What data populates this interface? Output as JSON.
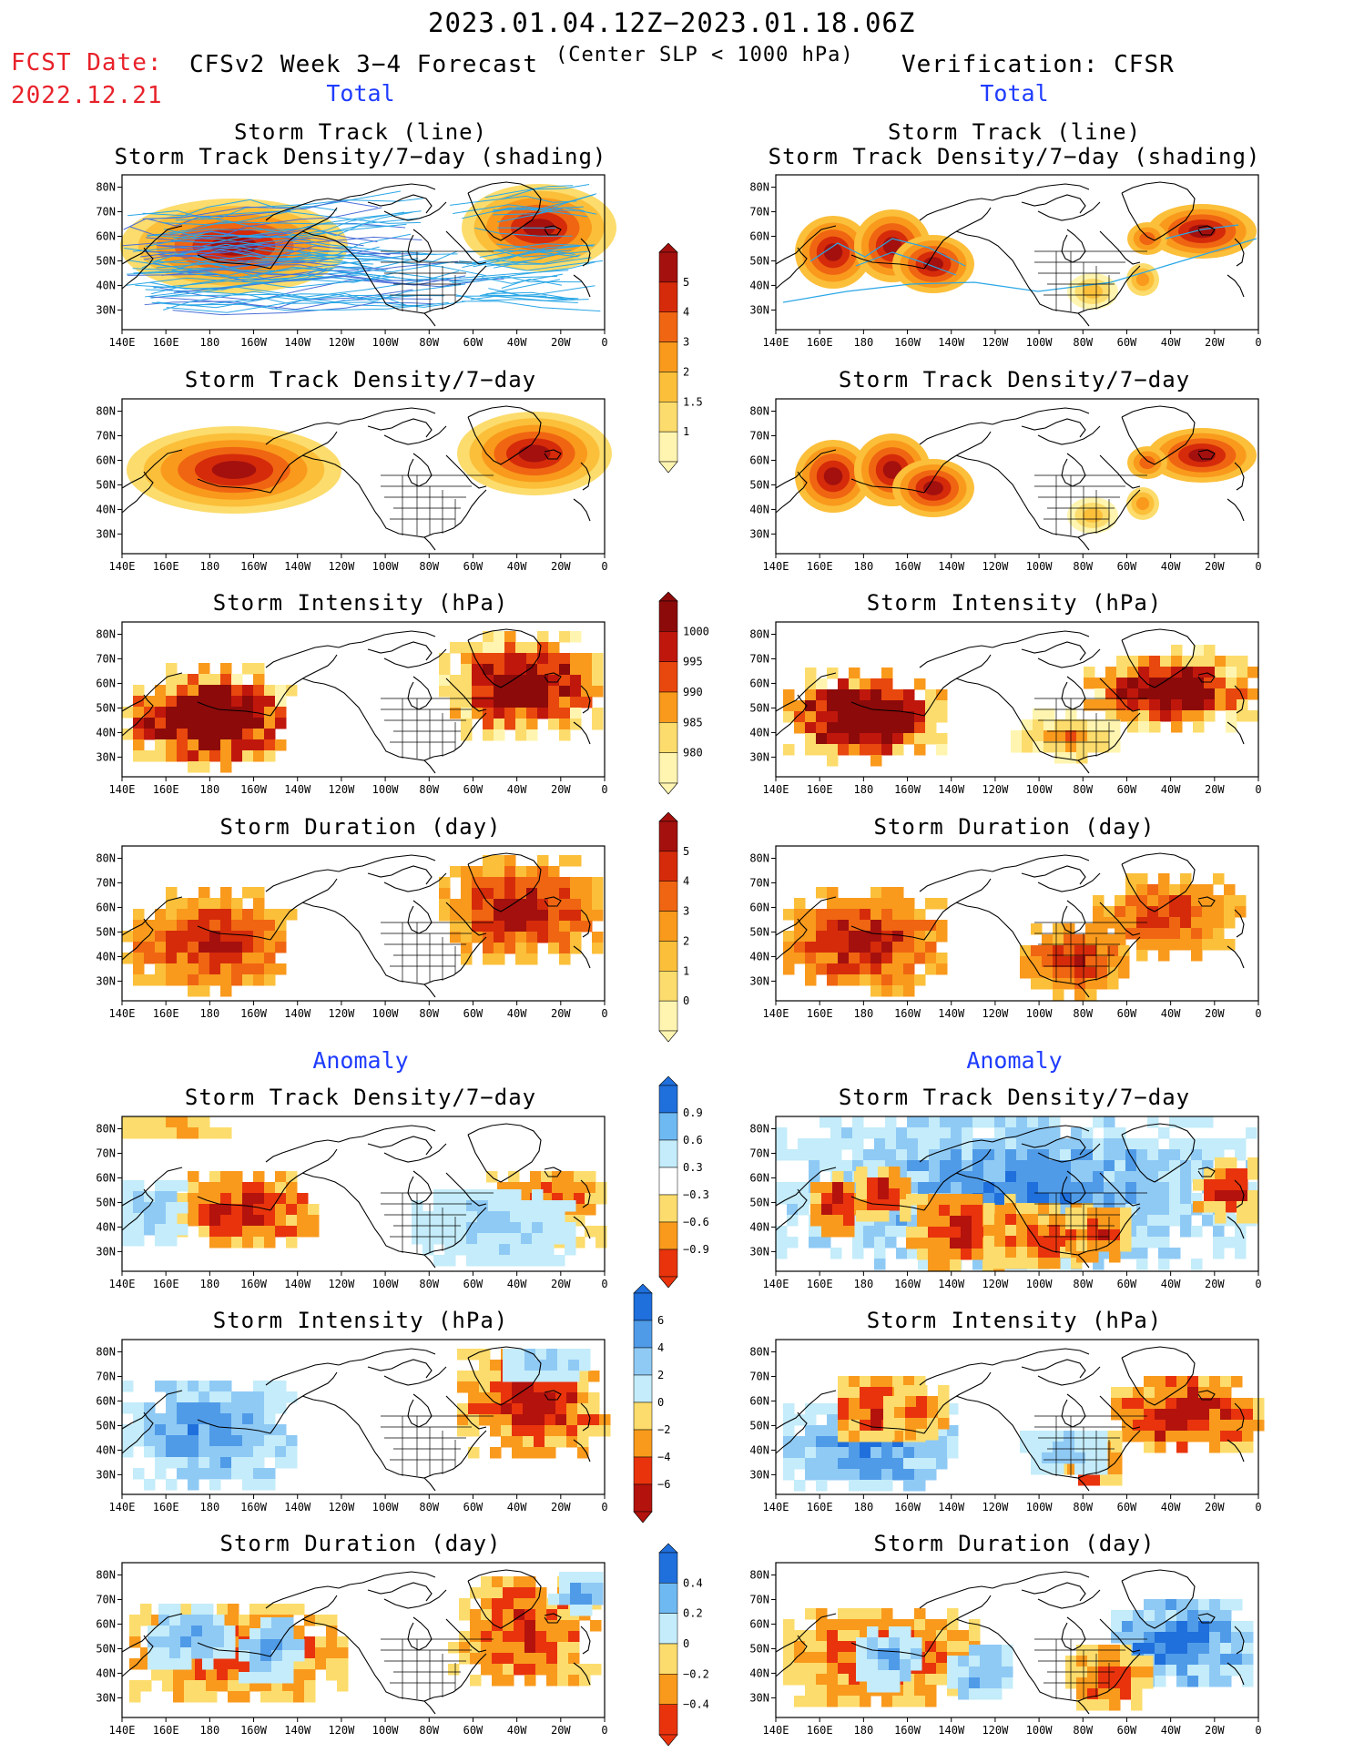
{
  "header": {
    "period": "2023.01.04.12Z−2023.01.18.06Z",
    "fcst_label": "FCST Date:",
    "fcst_date": "2022.12.21",
    "forecast_title": "CFSv2 Week 3−4 Forecast",
    "criterion": "(Center SLP < 1000 hPa)",
    "verification_title": "Verification: CFSR"
  },
  "sections": {
    "total": "Total",
    "anomaly": "Anomaly"
  },
  "panel_titles": {
    "track_line": "Storm Track (line)",
    "track_shading": "Storm Track Density/7−day (shading)",
    "density": "Storm Track Density/7−day",
    "intensity": "Storm Intensity (hPa)",
    "duration": "Storm Duration (day)"
  },
  "map_axes": {
    "lon_labels": [
      "140E",
      "160E",
      "180",
      "160W",
      "140W",
      "120W",
      "100W",
      "80W",
      "60W",
      "40W",
      "20W",
      "0"
    ],
    "lat_labels": [
      "80N",
      "70N",
      "60N",
      "50N",
      "40N",
      "30N"
    ]
  },
  "colorbars": {
    "density_total": {
      "labels": [
        "1",
        "1.5",
        "2",
        "3",
        "4",
        "5"
      ],
      "colors": [
        "#fff5b0",
        "#fcdc6c",
        "#fbbf3a",
        "#f99a1c",
        "#f06512",
        "#d52b0a",
        "#a3100e"
      ]
    },
    "intensity_total": {
      "labels": [
        "1000",
        "995",
        "990",
        "985",
        "980"
      ],
      "colors": [
        "#fff5b0",
        "#fcdc6c",
        "#f99a1c",
        "#e8470d",
        "#c0170d",
        "#8c0a0a"
      ]
    },
    "duration_total": {
      "labels": [
        "0",
        "1",
        "2",
        "3",
        "4",
        "5"
      ],
      "colors": [
        "#fff5b0",
        "#fcdc6c",
        "#fbbf3a",
        "#f99a1c",
        "#f06512",
        "#d52b0a",
        "#a3100e"
      ]
    },
    "density_anom": {
      "labels": [
        "0.9",
        "0.6",
        "0.3",
        "−0.3",
        "−0.6",
        "−0.9"
      ],
      "colors": [
        "#e8330d",
        "#f99a1c",
        "#fcdc6c",
        "#ffffff",
        "#c4ecfa",
        "#6fb9f2",
        "#1f6fdc"
      ]
    },
    "intensity_anom": {
      "labels": [
        "6",
        "4",
        "2",
        "0",
        "−2",
        "−4",
        "−6"
      ],
      "colors": [
        "#b3120d",
        "#e8330d",
        "#f99a1c",
        "#fcdc6c",
        "#c4ecfa",
        "#8fcaf5",
        "#4f9be8",
        "#1f6fdc"
      ]
    },
    "duration_anom": {
      "labels": [
        "0.4",
        "0.2",
        "0",
        "−0.2",
        "−0.4"
      ],
      "colors": [
        "#e8330d",
        "#f99a1c",
        "#fcdc6c",
        "#c4ecfa",
        "#6fb9f2",
        "#1f6fdc"
      ]
    }
  }
}
